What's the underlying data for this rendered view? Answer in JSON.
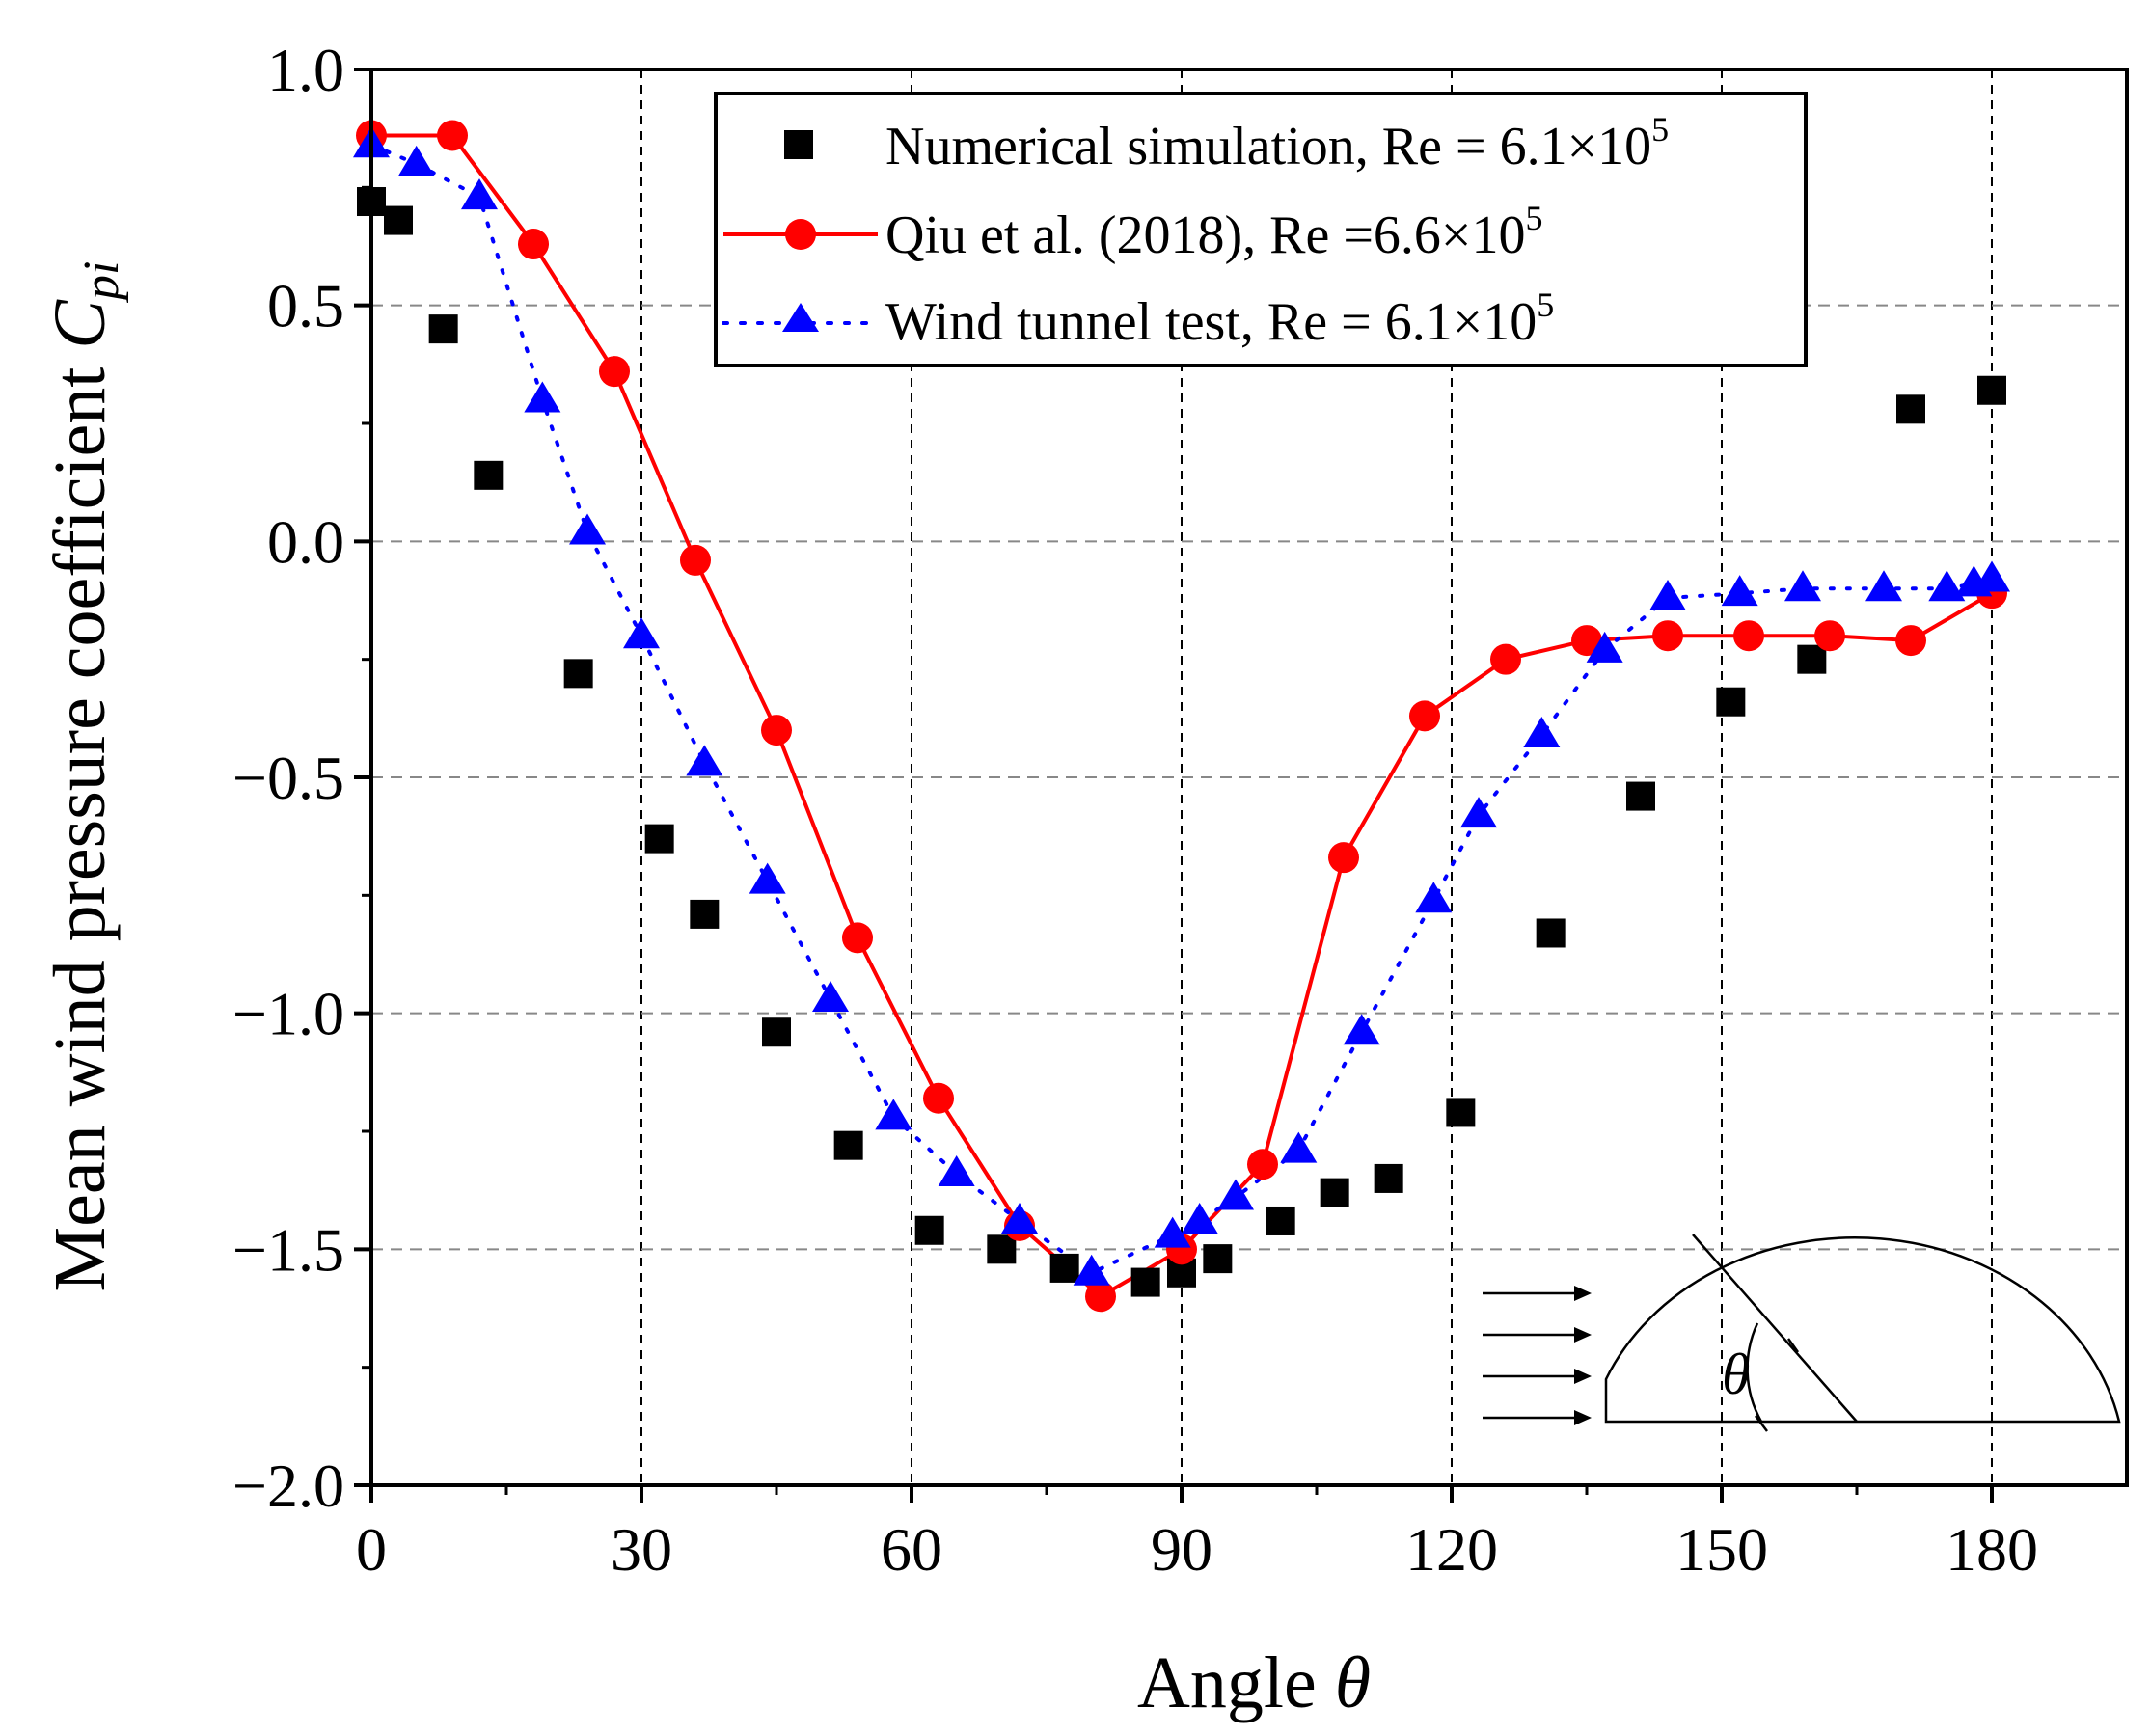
{
  "chart_data": {
    "type": "scatter",
    "xlabel": "Angle",
    "xlabel_symbol": "θ",
    "ylabel": "Mean wind pressure coefficient",
    "ylabel_symbol": "C",
    "ylabel_subscript": "pi",
    "xlim": [
      0,
      195
    ],
    "ylim": [
      -2.0,
      1.0
    ],
    "xticks": [
      0,
      30,
      60,
      90,
      120,
      150,
      180
    ],
    "xtick_labels": [
      "0",
      "30",
      "60",
      "90",
      "120",
      "150",
      "180"
    ],
    "yticks": [
      1.0,
      0.5,
      0.0,
      -0.5,
      -1.0,
      -1.5,
      -2.0
    ],
    "ytick_labels": [
      "1.0",
      "0.5",
      "0.0",
      "−0.5",
      "−1.0",
      "−1.5",
      "−2.0"
    ],
    "grid": "dashed",
    "legend_position": "top-center",
    "series": [
      {
        "name": "Numerical simulation",
        "legend_label": "Numerical simulation, Re = 6.1×10",
        "legend_exponent": "5",
        "marker": "square",
        "color": "#000000",
        "line": "none",
        "x": [
          0,
          3,
          8,
          13,
          23,
          32,
          37,
          45,
          53,
          62,
          70,
          77,
          86,
          90,
          94,
          101,
          107,
          113,
          121,
          131,
          141,
          151,
          160,
          171,
          180
        ],
        "y": [
          0.72,
          0.68,
          0.45,
          0.14,
          -0.28,
          -0.63,
          -0.79,
          -1.04,
          -1.28,
          -1.46,
          -1.5,
          -1.54,
          -1.57,
          -1.55,
          -1.52,
          -1.44,
          -1.38,
          -1.35,
          -1.21,
          -0.83,
          -0.54,
          -0.34,
          -0.25,
          0.28,
          0.32
        ]
      },
      {
        "name": "Qiu et al. (2018)",
        "legend_label": "Qiu et al. (2018), Re =6.6×10",
        "legend_exponent": "5",
        "marker": "circle",
        "color": "#ff0000",
        "line": "solid",
        "x": [
          0,
          9,
          18,
          27,
          36,
          45,
          54,
          63,
          72,
          81,
          90,
          99,
          108,
          117,
          126,
          135,
          144,
          153,
          162,
          171,
          180
        ],
        "y": [
          0.86,
          0.86,
          0.63,
          0.36,
          -0.04,
          -0.4,
          -0.84,
          -1.18,
          -1.45,
          -1.6,
          -1.5,
          -1.32,
          -0.67,
          -0.37,
          -0.25,
          -0.21,
          -0.2,
          -0.2,
          -0.2,
          -0.21,
          -0.11
        ]
      },
      {
        "name": "Wind tunnel test",
        "legend_label": "Wind tunnel test, Re = 6.1×10",
        "legend_exponent": "5",
        "marker": "triangle",
        "color": "#0000ff",
        "line": "dotted",
        "x": [
          0,
          5,
          12,
          19,
          24,
          30,
          37,
          44,
          51,
          58,
          65,
          72,
          80,
          89,
          92,
          96,
          103,
          110,
          118,
          123,
          130,
          137,
          144,
          152,
          159,
          168,
          175,
          178,
          180
        ],
        "y": [
          0.84,
          0.8,
          0.73,
          0.3,
          0.02,
          -0.2,
          -0.47,
          -0.72,
          -0.97,
          -1.22,
          -1.34,
          -1.44,
          -1.55,
          -1.47,
          -1.44,
          -1.39,
          -1.29,
          -1.04,
          -0.76,
          -0.58,
          -0.41,
          -0.23,
          -0.12,
          -0.11,
          -0.1,
          -0.1,
          -0.1,
          -0.09,
          -0.08
        ]
      }
    ]
  },
  "inset": {
    "angle_symbol": "θ",
    "description_arrows": 4
  }
}
